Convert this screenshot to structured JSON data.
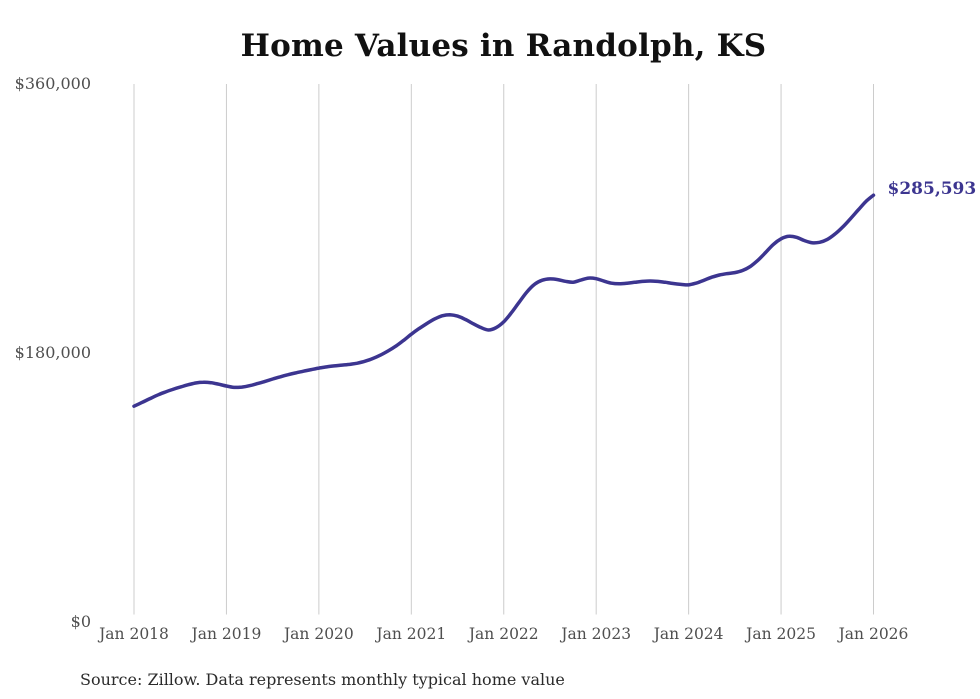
{
  "title": "Home Values in Randolph, KS",
  "source_note": "Source: Zillow. Data represents monthly typical home value",
  "end_label": "$285,593",
  "colors": {
    "line": "#3c3590",
    "grid": "#cccccc",
    "title": "#111111",
    "axis_label": "#4f4f4f",
    "end_label": "#3c3590",
    "source": "#2b2b2b",
    "background": "#ffffff"
  },
  "chart_data": {
    "type": "line",
    "title": "Home Values in Randolph, KS",
    "xlabel": "",
    "ylabel": "",
    "x_start": "Jan 2018",
    "x_end": "Jan 2026",
    "frequency": "monthly",
    "x_tick_labels": [
      "Jan 2018",
      "Jan 2019",
      "Jan 2020",
      "Jan 2021",
      "Jan 2022",
      "Jan 2023",
      "Jan 2024",
      "Jan 2025",
      "Jan 2026"
    ],
    "x_ticks_every_n_points": 12,
    "y_ticks": [
      {
        "label": "$360,000",
        "value": 360000
      },
      {
        "label": "$180,000",
        "value": 180000
      },
      {
        "label": "$0",
        "value": 0
      }
    ],
    "ylim": [
      0,
      360000
    ],
    "grid": "vertical-only",
    "legend": "none",
    "last_value": 285593,
    "last_value_label": "$285,593",
    "series": [
      {
        "name": "Typical home value",
        "values": [
          144400,
          146800,
          149300,
          151700,
          153800,
          155600,
          157200,
          158700,
          159900,
          160400,
          160100,
          159100,
          157900,
          157000,
          157200,
          158100,
          159500,
          161000,
          162600,
          164100,
          165500,
          166700,
          167800,
          168900,
          169900,
          170700,
          171400,
          171900,
          172400,
          173200,
          174500,
          176300,
          178600,
          181400,
          184600,
          188400,
          192600,
          196300,
          199700,
          202700,
          204900,
          205600,
          204700,
          202500,
          199700,
          197100,
          195400,
          196900,
          200900,
          207000,
          214000,
          220800,
          226000,
          228700,
          229600,
          229100,
          228000,
          227400,
          228800,
          230100,
          229700,
          228100,
          226700,
          226300,
          226700,
          227300,
          227900,
          228200,
          227900,
          227300,
          226500,
          225900,
          225600,
          226800,
          228700,
          230700,
          232200,
          233100,
          233800,
          235200,
          237900,
          242100,
          247300,
          252700,
          256400,
          258100,
          257400,
          255300,
          253800,
          254100,
          256000,
          259600,
          264300,
          269800,
          275600,
          281300,
          285593
        ]
      }
    ]
  }
}
